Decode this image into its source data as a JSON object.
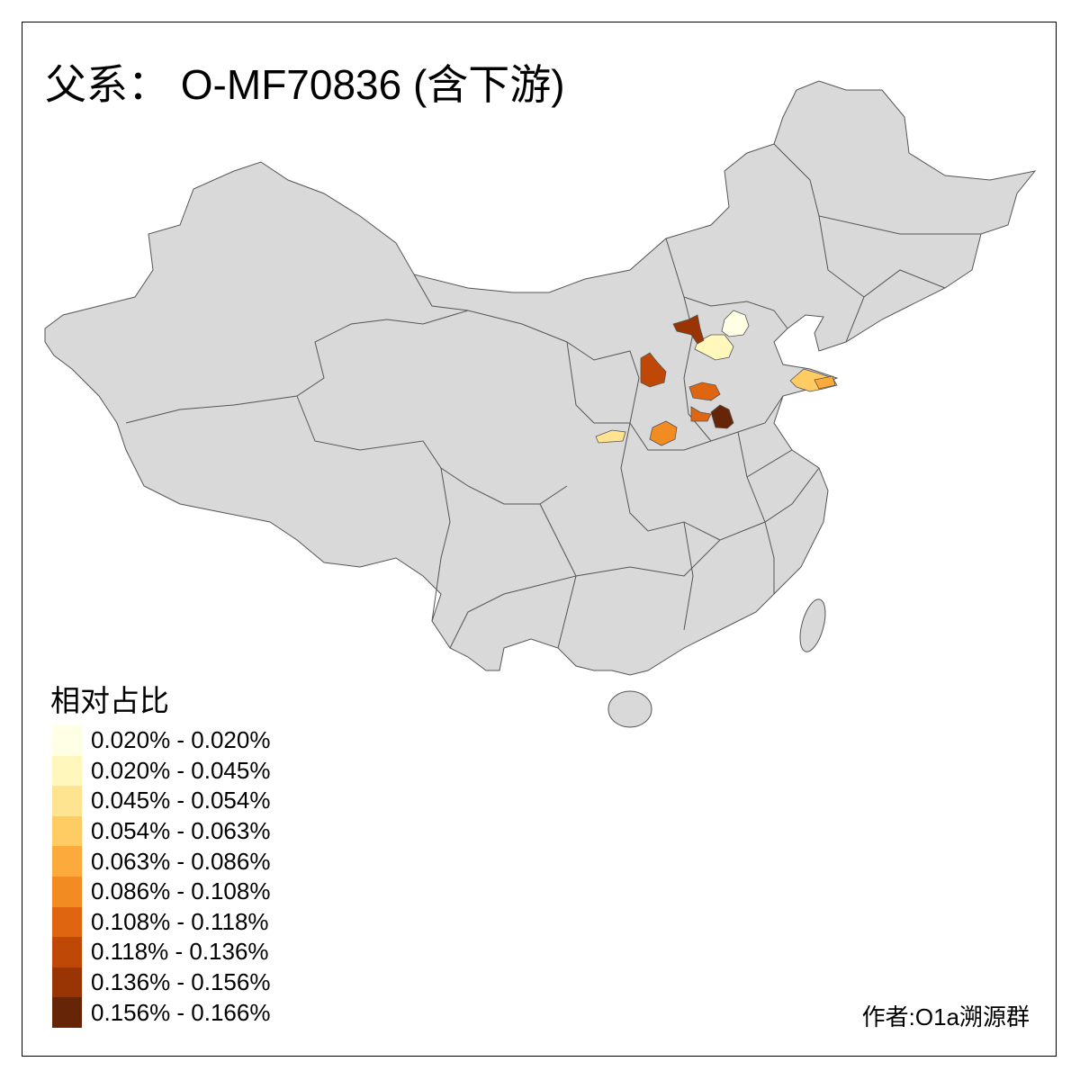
{
  "title": "父系： O-MF70836 (含下游)",
  "legend": {
    "title": "相对占比",
    "items": [
      {
        "label": "0.020% - 0.020%",
        "color": "#ffffe5"
      },
      {
        "label": "0.020% - 0.045%",
        "color": "#fff7bc"
      },
      {
        "label": "0.045% - 0.054%",
        "color": "#fee391"
      },
      {
        "label": "0.054% - 0.063%",
        "color": "#fecc62"
      },
      {
        "label": "0.063% - 0.086%",
        "color": "#fdaa3c"
      },
      {
        "label": "0.086% - 0.108%",
        "color": "#f38b23"
      },
      {
        "label": "0.108% - 0.118%",
        "color": "#e06510"
      },
      {
        "label": "0.118% - 0.136%",
        "color": "#c04806"
      },
      {
        "label": "0.136% - 0.156%",
        "color": "#993404"
      },
      {
        "label": "0.156% - 0.166%",
        "color": "#662506"
      }
    ]
  },
  "map": {
    "base_color": "#d9d9d9",
    "border_color": "#555555"
  },
  "credit": "作者:O1a溯源群"
}
